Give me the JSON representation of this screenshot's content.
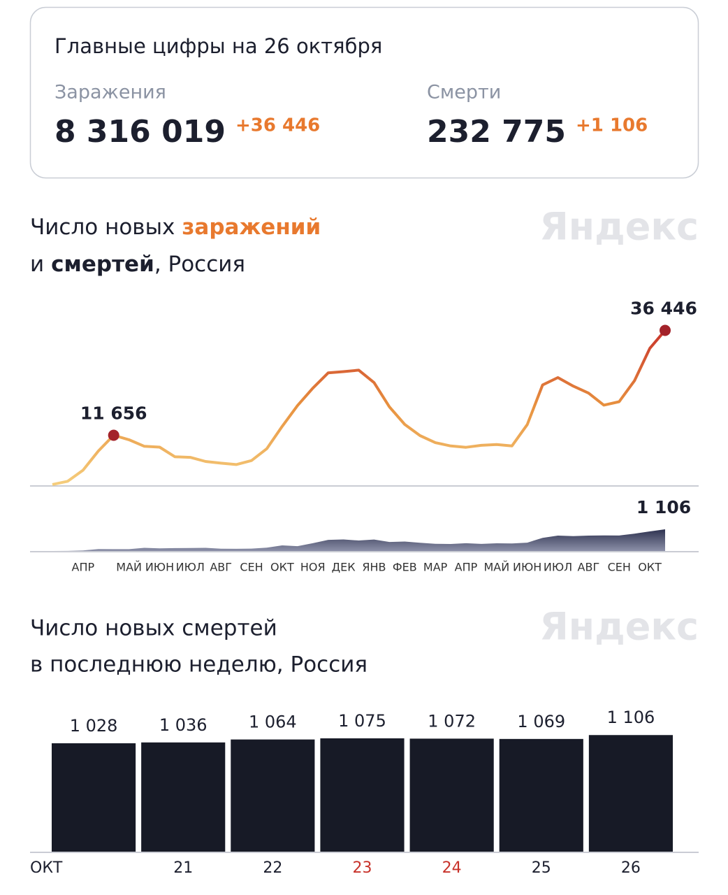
{
  "header": {
    "title": "Главные цифры на 26 октября",
    "stats": [
      {
        "label": "Заражения",
        "value": "8 316 019",
        "delta": "+36 446"
      },
      {
        "label": "Смерти",
        "value": "232 775",
        "delta": "+1 106"
      }
    ]
  },
  "watermark": "Яндекс",
  "chart_data": [
    {
      "type": "line",
      "title_parts": [
        "Число новых",
        "и",
        ", Россия"
      ],
      "categories": [
        null,
        null,
        "АПР",
        null,
        null,
        "МАЙ",
        null,
        "ИЮН",
        null,
        "ИЮЛ",
        null,
        "АВГ",
        null,
        "СЕН",
        null,
        "ОКТ",
        null,
        "НОЯ",
        null,
        "ДЕК",
        null,
        "ЯНВ",
        null,
        "ФЕВ",
        null,
        "МАР",
        null,
        "АПР",
        null,
        "МАЙ",
        null,
        "ИЮН",
        null,
        "ИЮЛ",
        null,
        "АВГ",
        null,
        "СЕН",
        null,
        "ОКТ",
        null
      ],
      "ylim": [
        0,
        40000
      ],
      "y2lim": [
        0,
        3000
      ],
      "series": [
        {
          "name": "заражений",
          "colors": [
            "#f5cd7c",
            "#e8923f",
            "#c8322a"
          ],
          "marker_color": "#a3222a",
          "values": [
            20,
            771,
            3388,
            7933,
            11656,
            10598,
            9035,
            8835,
            6556,
            6422,
            5462,
            5061,
            4729,
            5670,
            8481,
            13754,
            18665,
            22778,
            26402,
            26689,
            27039,
            24092,
            18359,
            14207,
            11571,
            9908,
            9128,
            8807,
            9270,
            9462,
            9145,
            14185,
            23543,
            25293,
            23270,
            21624,
            18780,
            19594,
            24522,
            32196,
            36446
          ],
          "value_labels": [
            null,
            null,
            null,
            null,
            "11 656",
            null,
            null,
            null,
            null,
            null,
            null,
            null,
            null,
            null,
            null,
            null,
            null,
            null,
            null,
            null,
            null,
            null,
            null,
            null,
            null,
            null,
            null,
            null,
            null,
            null,
            null,
            null,
            null,
            null,
            null,
            null,
            null,
            null,
            null,
            null,
            "36 446"
          ]
        },
        {
          "name": "смертей",
          "type": "area",
          "axis": "y2",
          "colors": [
            "#8c90a8",
            "#2e3250"
          ],
          "values": [
            0,
            2,
            28,
            96,
            94,
            93,
            162,
            134,
            147,
            154,
            161,
            114,
            110,
            122,
            169,
            286,
            245,
            395,
            569,
            589,
            537,
            586,
            462,
            483,
            417,
            367,
            358,
            395,
            359,
            392,
            383,
            425,
            672,
            786,
            762,
            784,
            795,
            791,
            887,
            999,
            1106
          ],
          "value_labels": [
            null,
            null,
            null,
            null,
            null,
            null,
            null,
            null,
            null,
            null,
            null,
            null,
            null,
            null,
            null,
            null,
            null,
            null,
            null,
            null,
            null,
            null,
            null,
            null,
            null,
            null,
            null,
            null,
            null,
            null,
            null,
            null,
            null,
            null,
            null,
            null,
            null,
            null,
            null,
            null,
            "1 106"
          ]
        }
      ]
    },
    {
      "type": "bar",
      "title_lines": [
        "Число новых смертей",
        "в последнюю неделю, Россия"
      ],
      "categories": [
        "ОКТ",
        "21",
        "22",
        "23",
        "24",
        "25",
        "26"
      ],
      "label_colors": [
        "#1c1f2e",
        "#1c1f2e",
        "#1c1f2e",
        "#c8322a",
        "#c8322a",
        "#1c1f2e",
        "#1c1f2e"
      ],
      "values": [
        1028,
        1036,
        1064,
        1075,
        1072,
        1069,
        1106
      ],
      "value_labels": [
        "1 028",
        "1 036",
        "1 064",
        "1 075",
        "1 072",
        "1 069",
        "1 106"
      ],
      "color": "#171a26",
      "ylim": [
        0,
        1300
      ]
    }
  ]
}
